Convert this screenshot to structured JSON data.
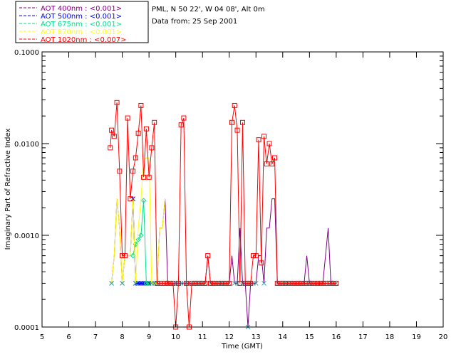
{
  "chart_data": {
    "type": "line",
    "title": "",
    "xlabel": "Time (GMT)",
    "ylabel": "Imaginary Part of Refractive Index",
    "xlim": [
      5,
      20
    ],
    "ylim": [
      0.0001,
      0.1
    ],
    "yscale": "log",
    "x_ticks": [
      5,
      6,
      7,
      8,
      9,
      10,
      11,
      12,
      13,
      14,
      15,
      16,
      17,
      18,
      19,
      20
    ],
    "x_tick_labels": [
      "5",
      "6",
      "7",
      "8",
      "9",
      "10",
      "11",
      "12",
      "13",
      "14",
      "15",
      "16",
      "17",
      "18",
      "19",
      "20"
    ],
    "y_ticks": [
      0.0001,
      0.001,
      0.01,
      0.1
    ],
    "y_tick_labels": [
      "0.0001",
      "0.0010",
      "0.0100",
      "0.1000"
    ],
    "info_lines": [
      "PML, N 50 22', W 04 08', Alt 0m",
      "Data from: 25 Sep 2001"
    ],
    "series": [
      {
        "name": "AOT  400nm : <0.001>",
        "color": "#7f0080",
        "marker": "none",
        "x": [
          7.6,
          7.7,
          7.8,
          7.9,
          8.0,
          8.1,
          8.2,
          8.3,
          8.4,
          8.5,
          8.6,
          8.7,
          8.8,
          8.9,
          9.0,
          9.1,
          9.2,
          9.3,
          9.4,
          9.5,
          9.6,
          9.7,
          9.8,
          9.9,
          10.0,
          10.1,
          10.2,
          10.3,
          10.4,
          10.5,
          10.6,
          10.7,
          10.8,
          10.9,
          11.0,
          11.1,
          11.2,
          11.3,
          11.4,
          11.5,
          11.6,
          11.7,
          11.8,
          11.9,
          12.0,
          12.1,
          12.2,
          12.3,
          12.4,
          12.5,
          12.6,
          12.7,
          12.8,
          12.9,
          13.0,
          13.1,
          13.2,
          13.3,
          13.4,
          13.5,
          13.6,
          13.7,
          13.8,
          13.9,
          14.0,
          14.1,
          14.2,
          14.3,
          14.4,
          14.5,
          14.6,
          14.7,
          14.8,
          14.9,
          15.0,
          15.1,
          15.2,
          15.3,
          15.4,
          15.5,
          15.6,
          15.7,
          15.8,
          15.9,
          16.0
        ],
        "y": [
          0.0003,
          0.0006,
          0.0025,
          0.0012,
          0.0003,
          0.0006,
          0.0006,
          0.0006,
          0.0025,
          0.0003,
          0.0003,
          0.0003,
          0.0003,
          0.0003,
          0.0003,
          0.0003,
          0.0003,
          0.0003,
          0.0012,
          0.0012,
          0.0025,
          0.0003,
          0.0003,
          0.0003,
          0.0003,
          0.0003,
          0.0003,
          0.0003,
          0.0003,
          0.0003,
          0.0003,
          0.0003,
          0.0003,
          0.0003,
          0.0003,
          0.0003,
          0.0006,
          0.0003,
          0.0003,
          0.0003,
          0.0003,
          0.0003,
          0.0003,
          0.0003,
          0.0003,
          0.0006,
          0.0003,
          0.0003,
          0.0012,
          0.0003,
          0.0003,
          0.0001,
          0.0003,
          0.0003,
          0.0003,
          0.0006,
          0.0006,
          0.0003,
          0.0012,
          0.0012,
          0.0025,
          0.0025,
          0.0003,
          0.0003,
          0.0003,
          0.0003,
          0.0003,
          0.0003,
          0.0003,
          0.0003,
          0.0003,
          0.0003,
          0.0003,
          0.0006,
          0.0003,
          0.0003,
          0.0003,
          0.0003,
          0.0003,
          0.0003,
          0.0006,
          0.0012,
          0.0003,
          0.0003,
          0.0003
        ]
      },
      {
        "name": "AOT  500nm : <0.001>",
        "color": "#0000ff",
        "marker": "star",
        "x": [
          8.4,
          8.5,
          8.6,
          8.7,
          8.8,
          8.9,
          9.0
        ],
        "y": [
          0.0025,
          0.0003,
          0.0003,
          0.0003,
          0.0003,
          0.0003,
          0.0003
        ]
      },
      {
        "name": "AOT  675nm : <0.001>",
        "color": "#00e08a",
        "marker": "diamond",
        "x": [
          8.4,
          8.5,
          8.6,
          8.7,
          8.8,
          8.9,
          9.0
        ],
        "y": [
          0.0006,
          0.0008,
          0.0009,
          0.001,
          0.0024,
          0.0003,
          0.0003
        ]
      },
      {
        "name": "AOT  870nm : <0.001>",
        "color": "#ffff00",
        "marker": "none",
        "x": [
          7.6,
          7.7,
          7.8,
          7.9,
          8.0,
          8.1,
          8.2,
          8.3,
          8.4,
          8.5,
          8.6,
          8.7,
          8.8,
          8.9,
          9.0,
          9.1,
          9.2,
          9.3,
          9.4,
          9.5,
          9.6
        ],
        "y": [
          0.0003,
          0.0006,
          0.0025,
          0.0012,
          0.0003,
          0.0006,
          0.0006,
          0.0006,
          0.0025,
          0.0003,
          0.0012,
          0.0025,
          0.0065,
          0.007,
          0.007,
          0.0003,
          0.0003,
          0.0003,
          0.0012,
          0.0012,
          0.0025
        ]
      },
      {
        "name": "AOT 1020nm : <0.007>",
        "color": "#ff0000",
        "marker": "square",
        "x": [
          7.55,
          7.6,
          7.7,
          7.8,
          7.9,
          8.0,
          8.1,
          8.2,
          8.3,
          8.4,
          8.5,
          8.6,
          8.7,
          8.8,
          8.9,
          9.0,
          9.1,
          9.2,
          9.3,
          9.4,
          9.5,
          9.6,
          9.7,
          9.8,
          9.9,
          10.0,
          10.1,
          10.2,
          10.3,
          10.4,
          10.5,
          10.6,
          10.7,
          10.8,
          10.9,
          11.0,
          11.1,
          11.2,
          11.3,
          11.4,
          11.5,
          11.6,
          11.7,
          11.8,
          11.9,
          12.0,
          12.1,
          12.2,
          12.3,
          12.4,
          12.5,
          12.6,
          12.7,
          12.8,
          12.9,
          13.0,
          13.1,
          13.2,
          13.3,
          13.4,
          13.5,
          13.6,
          13.7,
          13.8,
          13.9,
          14.0,
          14.1,
          14.2,
          14.3,
          14.4,
          14.5,
          14.6,
          14.7,
          14.8,
          14.9,
          15.0,
          15.1,
          15.2,
          15.3,
          15.4,
          15.5,
          15.6,
          15.7,
          15.8,
          15.9,
          16.0
        ],
        "y": [
          0.009,
          0.014,
          0.012,
          0.028,
          0.005,
          0.0006,
          0.0006,
          0.019,
          0.0025,
          0.005,
          0.007,
          0.013,
          0.026,
          0.0043,
          0.0145,
          0.0043,
          0.009,
          0.017,
          0.0003,
          0.0003,
          0.0003,
          0.0003,
          0.0003,
          0.0003,
          0.0003,
          0.0001,
          0.0003,
          0.016,
          0.019,
          0.0003,
          0.0001,
          0.0003,
          0.0003,
          0.0003,
          0.0003,
          0.0003,
          0.0003,
          0.0006,
          0.0003,
          0.0003,
          0.0003,
          0.0003,
          0.0003,
          0.0003,
          0.0003,
          0.0003,
          0.017,
          0.026,
          0.014,
          0.0003,
          0.017,
          0.0003,
          0.0003,
          0.0003,
          0.0006,
          0.0006,
          0.011,
          0.0005,
          0.012,
          0.006,
          0.01,
          0.006,
          0.007,
          0.0003,
          0.0003,
          0.0003,
          0.0003,
          0.0003,
          0.0003,
          0.0003,
          0.0003,
          0.0003,
          0.0003,
          0.0003,
          0.0003,
          0.0003,
          0.0003,
          0.0003,
          0.0003,
          0.0003,
          0.0003,
          0.0003,
          0.0003,
          0.0003,
          0.0003,
          0.0003
        ]
      }
    ]
  }
}
